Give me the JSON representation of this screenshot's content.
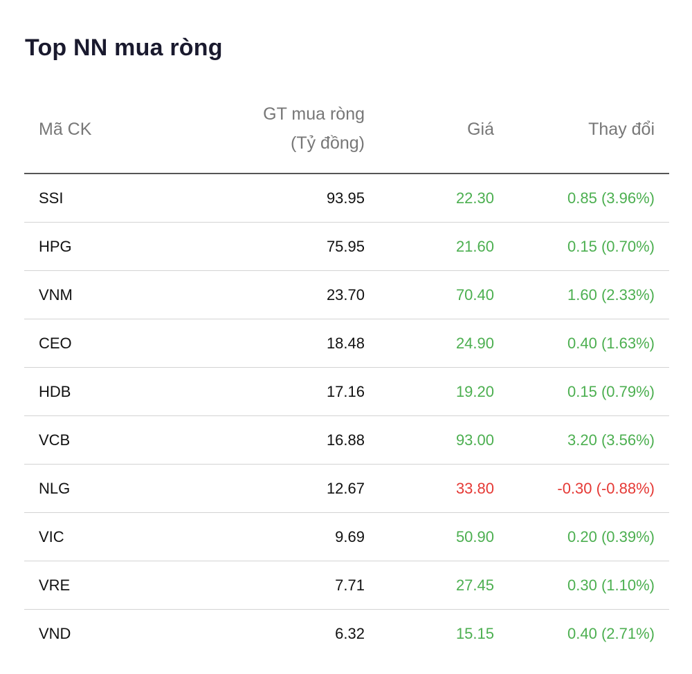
{
  "title": "Top NN mua ròng",
  "columns": {
    "code": "Mã CK",
    "net_value_line1": "GT mua ròng",
    "net_value_line2": "(Tỷ đồng)",
    "price": "Giá",
    "change": "Thay đổi"
  },
  "colors": {
    "up": "#4caf50",
    "down": "#e53935"
  },
  "rows": [
    {
      "code": "SSI",
      "net_value": "93.95",
      "price": "22.30",
      "change": "0.85 (3.96%)",
      "trend": "up"
    },
    {
      "code": "HPG",
      "net_value": "75.95",
      "price": "21.60",
      "change": "0.15 (0.70%)",
      "trend": "up"
    },
    {
      "code": "VNM",
      "net_value": "23.70",
      "price": "70.40",
      "change": "1.60 (2.33%)",
      "trend": "up"
    },
    {
      "code": "CEO",
      "net_value": "18.48",
      "price": "24.90",
      "change": "0.40 (1.63%)",
      "trend": "up"
    },
    {
      "code": "HDB",
      "net_value": "17.16",
      "price": "19.20",
      "change": "0.15 (0.79%)",
      "trend": "up"
    },
    {
      "code": "VCB",
      "net_value": "16.88",
      "price": "93.00",
      "change": "3.20 (3.56%)",
      "trend": "up"
    },
    {
      "code": "NLG",
      "net_value": "12.67",
      "price": "33.80",
      "change": "-0.30 (-0.88%)",
      "trend": "down"
    },
    {
      "code": "VIC",
      "net_value": "9.69",
      "price": "50.90",
      "change": "0.20 (0.39%)",
      "trend": "up"
    },
    {
      "code": "VRE",
      "net_value": "7.71",
      "price": "27.45",
      "change": "0.30 (1.10%)",
      "trend": "up"
    },
    {
      "code": "VND",
      "net_value": "6.32",
      "price": "15.15",
      "change": "0.40 (2.71%)",
      "trend": "up"
    }
  ]
}
